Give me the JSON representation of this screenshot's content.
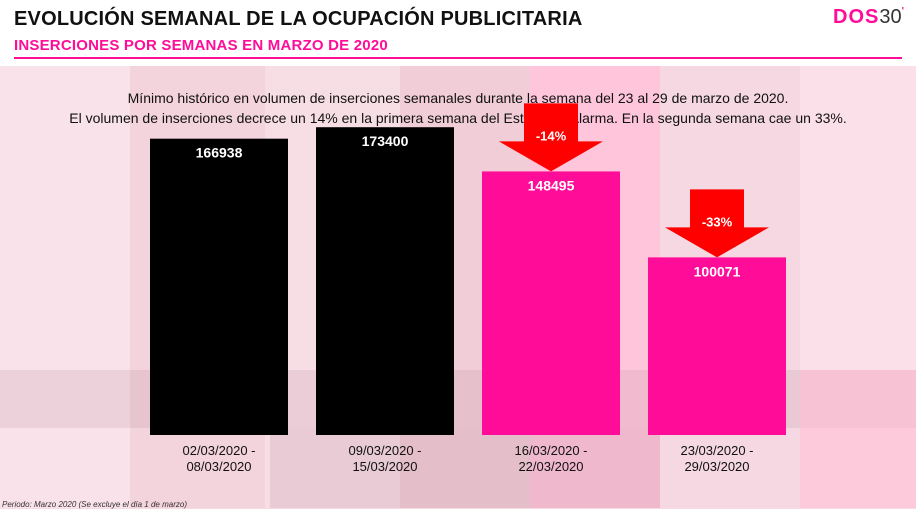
{
  "header": {
    "title": "EVOLUCIÓN SEMANAL DE LA OCUPACIÓN PUBLICITARIA",
    "subtitle": "INSERCIONES POR SEMANAS EN MARZO DE 2020",
    "logo_part1": "DOS",
    "logo_part2": "30",
    "logo_mark": "'"
  },
  "note": {
    "line1": "Mínimo histórico en volumen de inserciones semanales durante la semana del 23 al 29 de marzo de 2020.",
    "line2": "El volumen de inserciones decrece un 14% en la primera semana del Estado de Alarma. En la segunda semana cae un 33%."
  },
  "footnote": "Periodo: Marzo 2020 (Se excluye el día 1 de marzo)",
  "colors": {
    "black_bar": "#000000",
    "pink_bar": "#ff0d98",
    "arrow": "#ff0000",
    "accent": "#ff0d98"
  },
  "chart_data": {
    "type": "bar",
    "categories": [
      [
        "02/03/2020 -",
        "08/03/2020"
      ],
      [
        "09/03/2020 -",
        "15/03/2020"
      ],
      [
        "16/03/2020 -",
        "22/03/2020"
      ],
      [
        "23/03/2020 -",
        "29/03/2020"
      ]
    ],
    "values": [
      166938,
      173400,
      148495,
      100071
    ],
    "bar_colors": [
      "#000000",
      "#000000",
      "#ff0d98",
      "#ff0d98"
    ],
    "annotations": [
      {
        "bar_index": 2,
        "text": "-14%",
        "shape": "down-arrow"
      },
      {
        "bar_index": 3,
        "text": "-33%",
        "shape": "down-arrow"
      }
    ],
    "ylim": [
      0,
      200000
    ],
    "grid": false,
    "title": "",
    "xlabel": "",
    "ylabel": ""
  }
}
